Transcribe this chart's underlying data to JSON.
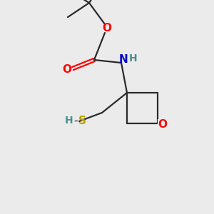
{
  "background_color": "#ebebeb",
  "bond_color": "#2a2a2a",
  "atom_colors": {
    "O": "#ff0000",
    "N": "#0000cd",
    "S": "#b8a000",
    "H_teal": "#4a9090"
  },
  "figsize": [
    3.0,
    3.0
  ],
  "dpi": 100,
  "lw": 1.6
}
